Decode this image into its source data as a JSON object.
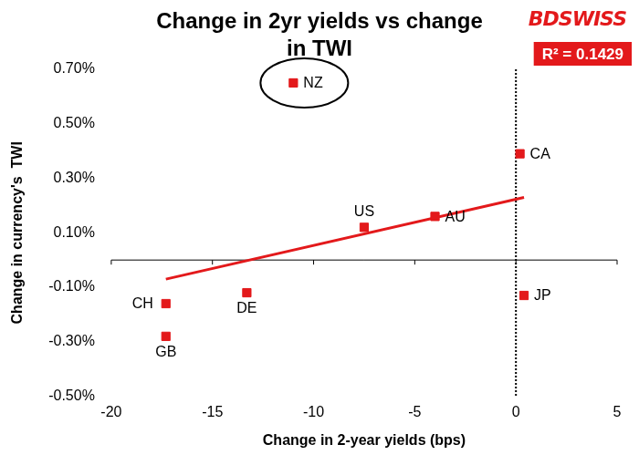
{
  "chart_data": {
    "type": "scatter",
    "title": "Change in 2yr yields vs change in TWI",
    "logo": "BDSWISS",
    "x_label": "Change in 2-year yields (bps)",
    "y_label": "Change in currency's  TWI",
    "xlim": [
      -20,
      5
    ],
    "xticks": [
      -20,
      -15,
      -10,
      -5,
      0,
      5
    ],
    "ylim": [
      -0.5,
      0.7
    ],
    "yticks": [
      {
        "value": -0.5,
        "label": "-0.50%"
      },
      {
        "value": -0.3,
        "label": "-0.30%"
      },
      {
        "value": -0.1,
        "label": "-0.10%"
      },
      {
        "value": 0.1,
        "label": "0.10%"
      },
      {
        "value": 0.3,
        "label": "0.30%"
      },
      {
        "value": 0.5,
        "label": "0.50%"
      },
      {
        "value": 0.7,
        "label": "0.70%"
      }
    ],
    "grid": false,
    "series": [
      {
        "x": [
          -7.5,
          -4,
          0.2,
          -17.3,
          -17.3,
          -13.3,
          0.4
        ],
        "values": [
          0.12,
          0.16,
          0.39,
          -0.16,
          -0.28,
          -0.12,
          -0.13
        ],
        "labels": [
          "US",
          "AU",
          "CA",
          "CH",
          "GB",
          "DE",
          "JP"
        ],
        "color": "#e3191b",
        "marker": "square"
      },
      {
        "x": [
          -11
        ],
        "values": [
          0.65
        ],
        "labels": [
          "NZ"
        ],
        "color": "#e3191b",
        "marker": "circled"
      }
    ],
    "trendline": {
      "x": [
        -17.3,
        0.4
      ],
      "values": [
        -0.07,
        0.23
      ],
      "color": "#e3191b",
      "annotation": "R² = 0.1429"
    }
  }
}
